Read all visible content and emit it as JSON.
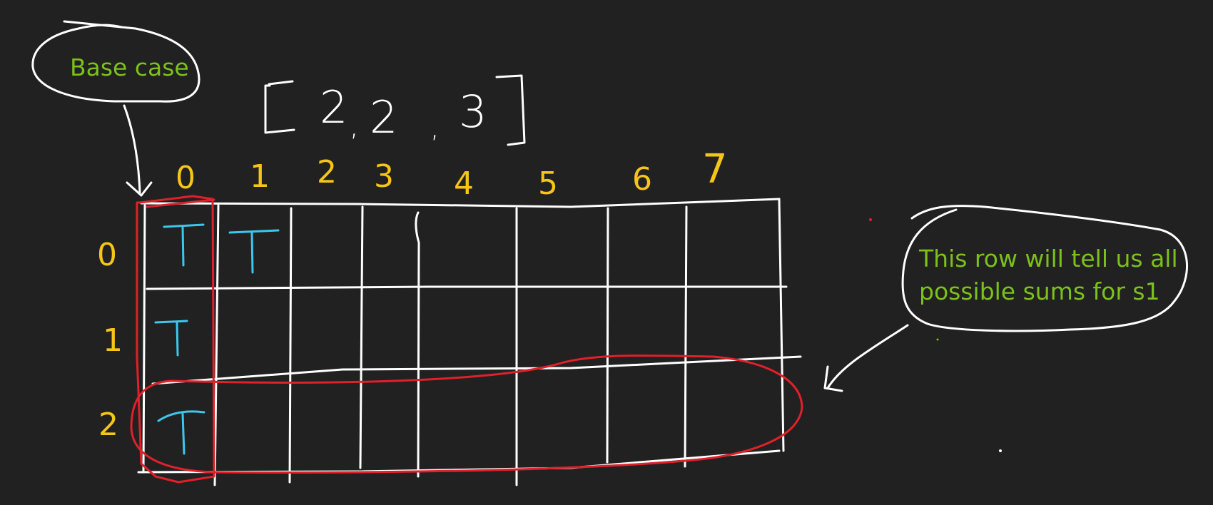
{
  "array": {
    "open": "[",
    "items": [
      "2",
      "2",
      "3"
    ],
    "close": "]"
  },
  "columns": [
    "0",
    "1",
    "2",
    "3",
    "4",
    "5",
    "6",
    "7"
  ],
  "rows": [
    "0",
    "1",
    "2"
  ],
  "cells": [
    {
      "row": 0,
      "col": 0,
      "value": "T"
    },
    {
      "row": 0,
      "col": 1,
      "value": "T"
    },
    {
      "row": 1,
      "col": 0,
      "value": "T"
    },
    {
      "row": 2,
      "col": 0,
      "value": "T"
    }
  ],
  "annotations": {
    "base_case": "Base case",
    "row_note_line1": "This row will tell us all",
    "row_note_line2": "possible sums for s1"
  },
  "colors": {
    "background": "#212121",
    "index": "#f5c518",
    "cell_value": "#3cc7ee",
    "note": "#7cc11a",
    "highlight": "#e0202a",
    "grid": "#ffffff"
  }
}
